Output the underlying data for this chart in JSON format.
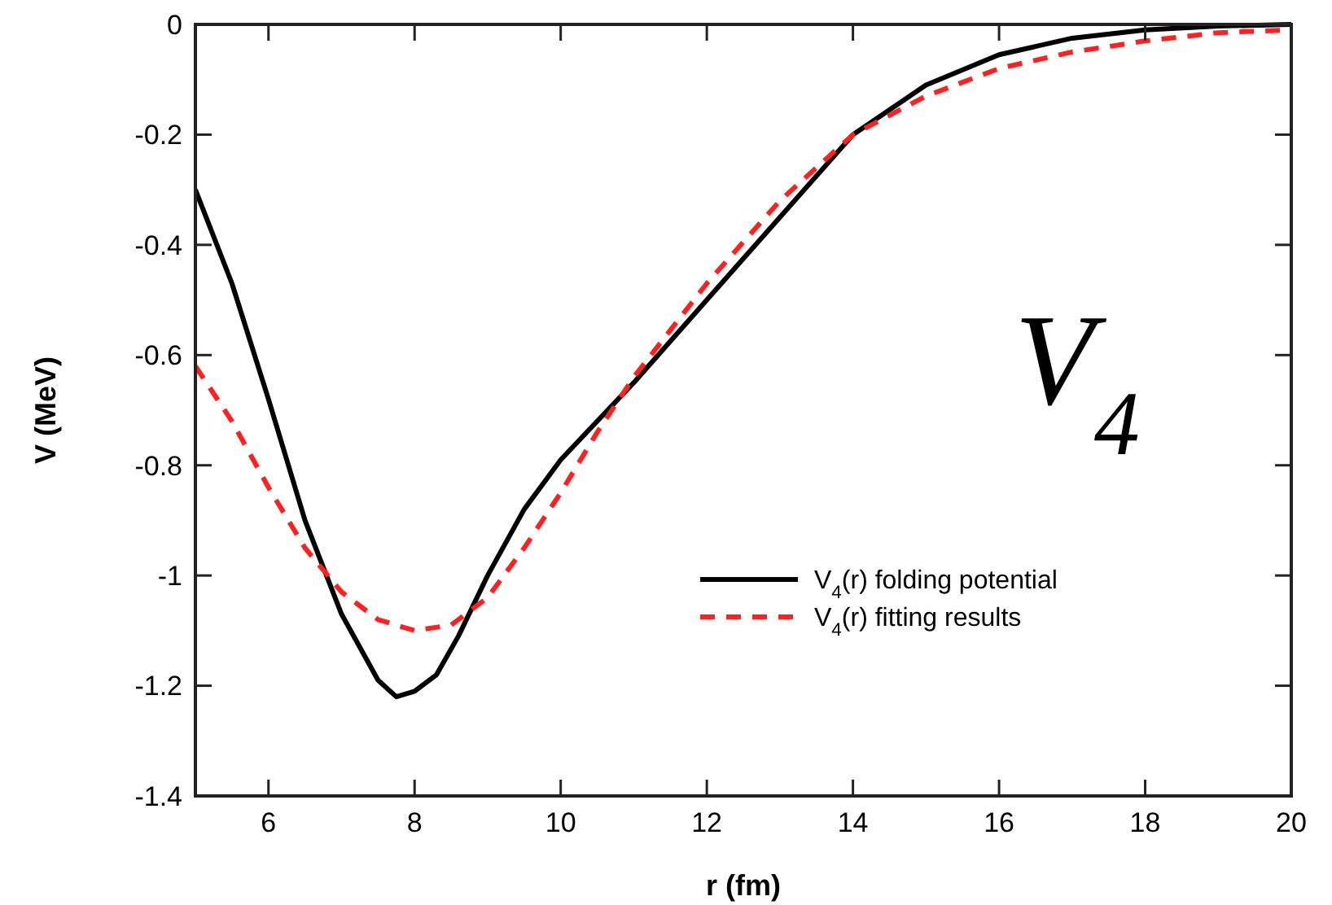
{
  "chart_data": {
    "type": "line",
    "xlabel": "r (fm)",
    "ylabel": "V (MeV)",
    "xlim": [
      5,
      20
    ],
    "xticks": [
      6,
      8,
      10,
      12,
      14,
      16,
      18,
      20
    ],
    "ylim": [
      -1.4,
      0
    ],
    "yticks": [
      -1.4,
      -1.2,
      -1,
      -0.8,
      -0.6,
      -0.4,
      -0.2,
      0
    ],
    "grid": false,
    "legend": "bottom right",
    "annotations": [
      "V$_{4}$"
    ],
    "series": [
      {
        "name": "V$_{4}$(r) folding potential",
        "color": "#000000",
        "line_style": "solid",
        "x": [
          5,
          5.5,
          6,
          6.5,
          7,
          7.5,
          7.75,
          8,
          8.3,
          8.6,
          9,
          9.5,
          10,
          10.5,
          11,
          12,
          13,
          14,
          15,
          16,
          17,
          18,
          19,
          20
        ],
        "values": [
          -0.3,
          -0.47,
          -0.68,
          -0.9,
          -1.07,
          -1.19,
          -1.22,
          -1.21,
          -1.18,
          -1.11,
          -1.0,
          -0.88,
          -0.79,
          -0.72,
          -0.65,
          -0.5,
          -0.35,
          -0.2,
          -0.11,
          -0.055,
          -0.025,
          -0.01,
          -0.003,
          0
        ]
      },
      {
        "name": "V$_{4}$(r) fitting results",
        "color": "#ff2020",
        "line_style": "dashed",
        "x": [
          5,
          5.5,
          6,
          6.5,
          7,
          7.5,
          8,
          8.5,
          9,
          9.5,
          10,
          10.5,
          11,
          12,
          13,
          14,
          15,
          16,
          17,
          18,
          19,
          20
        ],
        "values": [
          -0.62,
          -0.72,
          -0.84,
          -0.95,
          -1.03,
          -1.08,
          -1.1,
          -1.09,
          -1.04,
          -0.95,
          -0.85,
          -0.74,
          -0.64,
          -0.47,
          -0.32,
          -0.2,
          -0.13,
          -0.08,
          -0.05,
          -0.03,
          -0.015,
          -0.01
        ]
      }
    ]
  }
}
